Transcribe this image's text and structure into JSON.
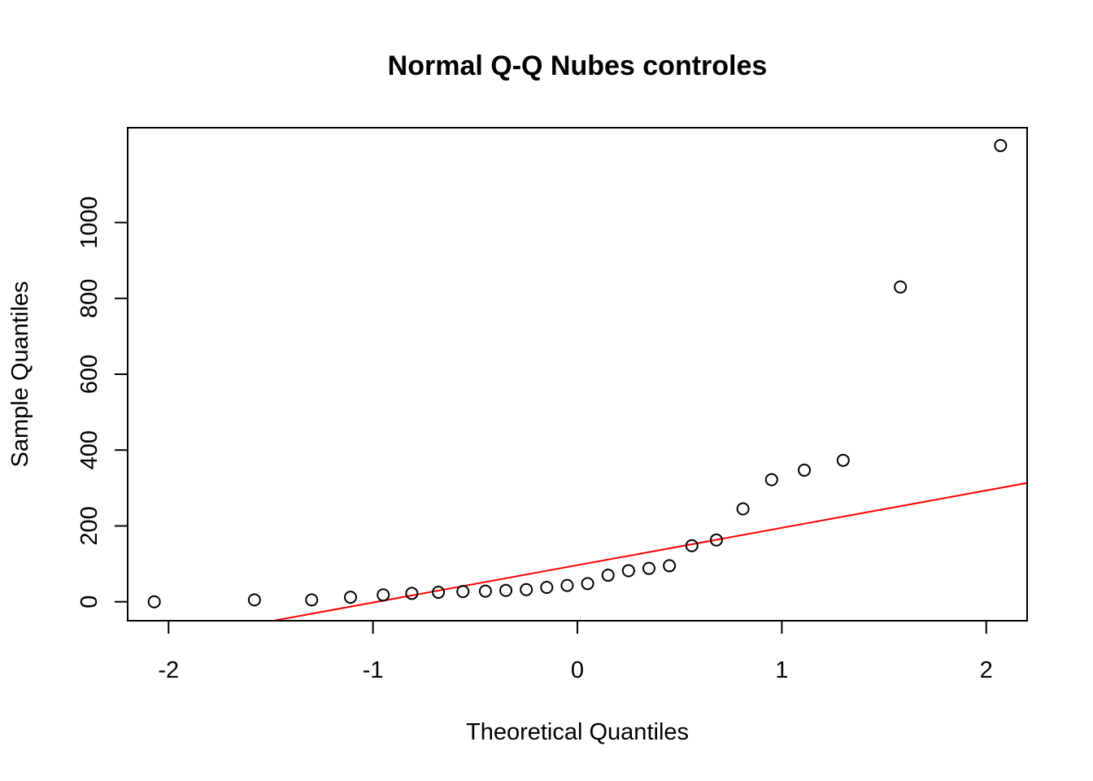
{
  "chart_data": {
    "type": "scatter",
    "title": "Normal Q-Q Nubes controles",
    "xlabel": "Theoretical Quantiles",
    "ylabel": "Sample Quantiles",
    "xlim": [
      -2.2,
      2.2
    ],
    "ylim": [
      -50,
      1250
    ],
    "x_ticks": [
      -2,
      -1,
      0,
      1,
      2
    ],
    "x_tick_labels": [
      "-2",
      "-1",
      "0",
      "1",
      "2"
    ],
    "y_ticks": [
      0,
      200,
      400,
      600,
      800,
      1000
    ],
    "y_tick_labels": [
      "0",
      "200",
      "400",
      "600",
      "800",
      "1000"
    ],
    "grid": false,
    "points": [
      {
        "x": -2.07,
        "y": 0
      },
      {
        "x": -1.58,
        "y": 5
      },
      {
        "x": -1.3,
        "y": 5
      },
      {
        "x": -1.11,
        "y": 12
      },
      {
        "x": -0.95,
        "y": 18
      },
      {
        "x": -0.81,
        "y": 22
      },
      {
        "x": -0.68,
        "y": 25
      },
      {
        "x": -0.56,
        "y": 27
      },
      {
        "x": -0.45,
        "y": 28
      },
      {
        "x": -0.35,
        "y": 30
      },
      {
        "x": -0.25,
        "y": 32
      },
      {
        "x": -0.15,
        "y": 38
      },
      {
        "x": -0.05,
        "y": 43
      },
      {
        "x": 0.05,
        "y": 48
      },
      {
        "x": 0.15,
        "y": 70
      },
      {
        "x": 0.25,
        "y": 82
      },
      {
        "x": 0.35,
        "y": 88
      },
      {
        "x": 0.45,
        "y": 95
      },
      {
        "x": 0.56,
        "y": 148
      },
      {
        "x": 0.68,
        "y": 163
      },
      {
        "x": 0.81,
        "y": 245
      },
      {
        "x": 0.95,
        "y": 322
      },
      {
        "x": 1.11,
        "y": 347
      },
      {
        "x": 1.3,
        "y": 373
      },
      {
        "x": 1.58,
        "y": 830
      },
      {
        "x": 2.07,
        "y": 1203
      }
    ],
    "reference_line": {
      "intercept": 96.5,
      "slope": 98.5,
      "color": "#ff0000"
    },
    "point_color": "#000000"
  }
}
